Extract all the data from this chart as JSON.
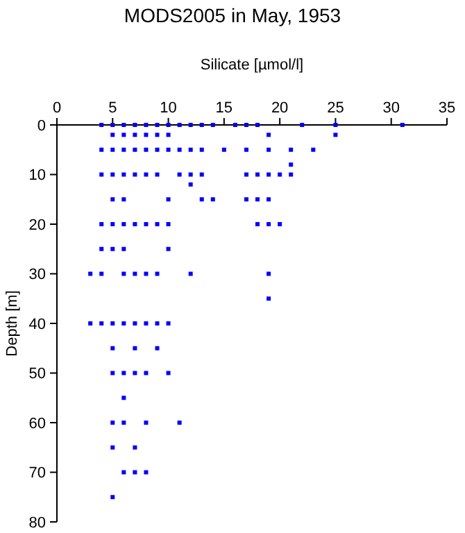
{
  "chart_data": {
    "type": "scatter",
    "title": "MODS2005 in May, 1953",
    "xlabel": "Silicate [µmol/l]",
    "ylabel": "Depth [m]",
    "xlim": [
      0,
      35
    ],
    "xticks": [
      0,
      5,
      10,
      15,
      20,
      25,
      30,
      35
    ],
    "ylim": [
      80,
      0
    ],
    "yticks": [
      0,
      10,
      20,
      30,
      40,
      50,
      60,
      70,
      80
    ],
    "marker": "square",
    "grid": false,
    "series": [
      {
        "color": "#0000ff",
        "x": [
          4,
          5,
          6,
          7,
          8,
          9,
          10,
          11,
          12,
          13,
          14,
          16,
          17,
          18,
          22,
          25,
          31,
          5,
          6,
          7,
          8,
          9,
          10,
          19,
          25,
          4,
          5,
          6,
          7,
          8,
          9,
          10,
          11,
          12,
          13,
          15,
          17,
          19,
          21,
          23,
          21,
          4,
          5,
          6,
          7,
          8,
          9,
          11,
          12,
          13,
          17,
          18,
          19,
          20,
          21,
          12,
          5,
          6,
          10,
          13,
          14,
          17,
          18,
          19,
          4,
          5,
          6,
          7,
          8,
          9,
          10,
          18,
          19,
          20,
          4,
          5,
          6,
          10,
          3,
          4,
          6,
          7,
          8,
          9,
          12,
          19,
          19,
          3,
          4,
          5,
          6,
          7,
          8,
          9,
          10,
          5,
          7,
          9,
          5,
          6,
          7,
          8,
          10,
          6,
          5,
          6,
          8,
          11,
          5,
          7,
          6,
          7,
          8,
          5
        ],
        "values": [
          0,
          0,
          0,
          0,
          0,
          0,
          0,
          0,
          0,
          0,
          0,
          0,
          0,
          0,
          0,
          0,
          0,
          2,
          2,
          2,
          2,
          2,
          2,
          2,
          2,
          5,
          5,
          5,
          5,
          5,
          5,
          5,
          5,
          5,
          5,
          5,
          5,
          5,
          5,
          5,
          8,
          10,
          10,
          10,
          10,
          10,
          10,
          10,
          10,
          10,
          10,
          10,
          10,
          10,
          10,
          12,
          15,
          15,
          15,
          15,
          15,
          15,
          15,
          15,
          20,
          20,
          20,
          20,
          20,
          20,
          20,
          20,
          20,
          20,
          25,
          25,
          25,
          25,
          30,
          30,
          30,
          30,
          30,
          30,
          30,
          30,
          35,
          40,
          40,
          40,
          40,
          40,
          40,
          40,
          40,
          45,
          45,
          45,
          50,
          50,
          50,
          50,
          50,
          55,
          60,
          60,
          60,
          60,
          65,
          65,
          70,
          70,
          70,
          75
        ]
      }
    ]
  }
}
